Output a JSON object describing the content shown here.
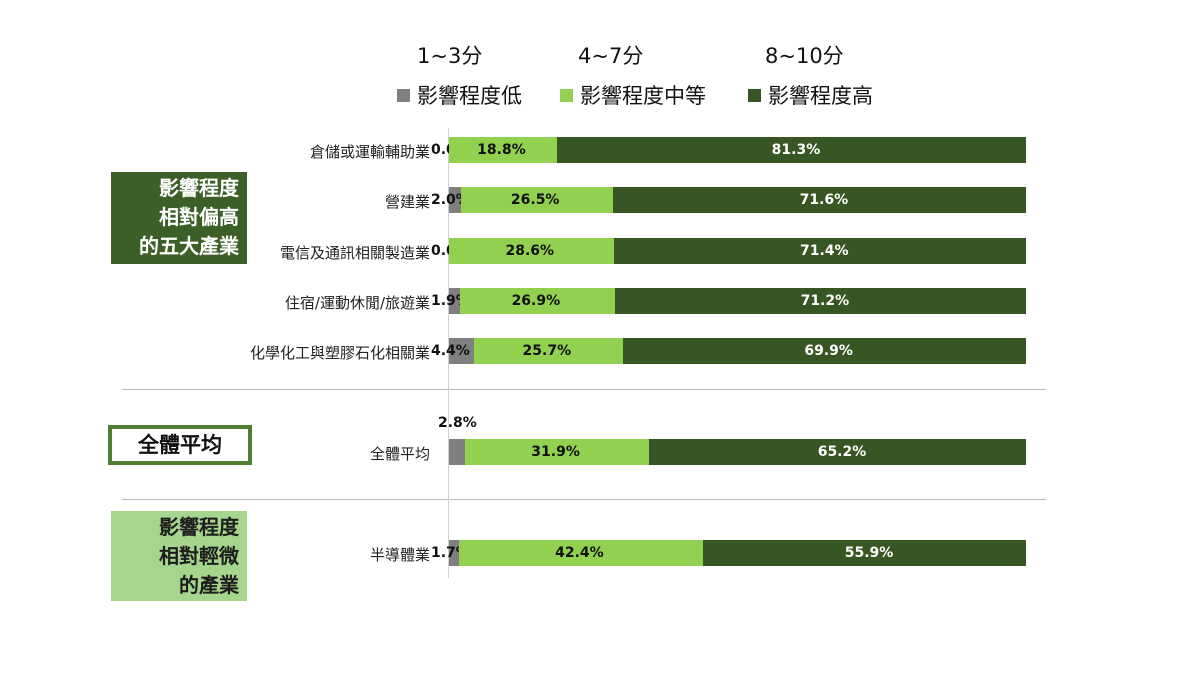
{
  "legend": {
    "score_ranges": [
      "1~3分",
      "4~7分",
      "8~10分"
    ],
    "items": [
      {
        "label": "影響程度低",
        "color": "#7f7f7f"
      },
      {
        "label": "影響程度中等",
        "color": "#92d050"
      },
      {
        "label": "影響程度高",
        "color": "#375623"
      }
    ]
  },
  "groups": {
    "high": "影響程度\n相對偏高\n的五大產業",
    "average": "全體平均",
    "low": "影響程度\n相對輕微\n的產業"
  },
  "chart_data": {
    "type": "bar",
    "orientation": "horizontal",
    "stacked": true,
    "xlim": [
      0,
      100
    ],
    "categories": [
      "倉儲或運輸輔助業",
      "營建業",
      "電信及通訊相關製造業",
      "住宿/運動休閒/旅遊業",
      "化學化工與塑膠石化相關業",
      "全體平均",
      "半導體業"
    ],
    "series": [
      {
        "name": "影響程度低",
        "values": [
          0.0,
          2.0,
          0.0,
          1.9,
          4.4,
          2.8,
          1.7
        ],
        "labels": [
          "0.0%",
          "2.0%",
          "0.0%",
          "1.9%",
          "4.4%",
          "2.8%",
          "1.7%"
        ]
      },
      {
        "name": "影響程度中等",
        "values": [
          18.8,
          26.5,
          28.6,
          26.9,
          25.7,
          31.9,
          42.4
        ],
        "labels": [
          "18.8%",
          "26.5%",
          "28.6%",
          "26.9%",
          "25.7%",
          "31.9%",
          "42.4%"
        ]
      },
      {
        "name": "影響程度高",
        "values": [
          81.3,
          71.6,
          71.4,
          71.2,
          69.9,
          65.2,
          55.9
        ],
        "labels": [
          "81.3%",
          "71.6%",
          "71.4%",
          "71.2%",
          "69.9%",
          "65.2%",
          "55.9%"
        ]
      }
    ]
  }
}
